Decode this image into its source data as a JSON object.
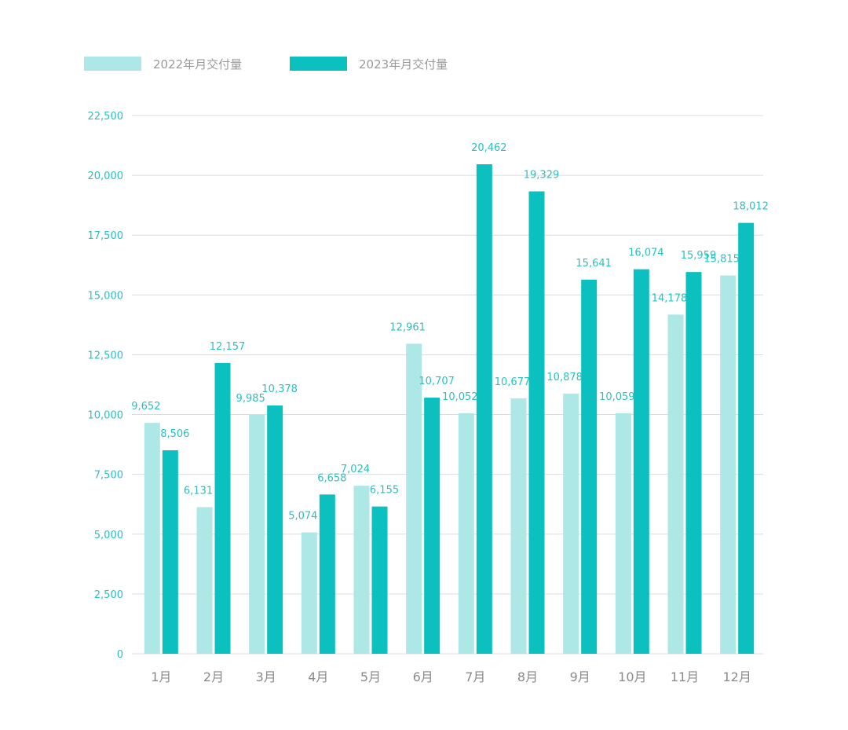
{
  "chart_data": {
    "type": "bar",
    "categories": [
      "1月",
      "2月",
      "3月",
      "4月",
      "5月",
      "6月",
      "7月",
      "8月",
      "9月",
      "10月",
      "11月",
      "12月"
    ],
    "series": [
      {
        "name": "2022年月交付量",
        "color": "#ade8e7",
        "values": [
          9652,
          6131,
          9985,
          5074,
          7024,
          12961,
          10052,
          10677,
          10878,
          10059,
          14178,
          15815
        ],
        "labels": [
          "9,652",
          "6,131",
          "9,985",
          "5,074",
          "7,024",
          "12,961",
          "10,052",
          "10,677",
          "10,878",
          "10,059",
          "14,178",
          "15,815"
        ]
      },
      {
        "name": "2023年月交付量",
        "color": "#0cc0c0",
        "values": [
          8506,
          12157,
          10378,
          6658,
          6155,
          10707,
          20462,
          19329,
          15641,
          16074,
          15959,
          18012
        ],
        "labels": [
          "8,506",
          "12,157",
          "10,378",
          "6,658",
          "6,155",
          "10,707",
          "20,462",
          "19,329",
          "15,641",
          "16,074",
          "15,959",
          "18,012"
        ]
      }
    ],
    "ylim": [
      0,
      22500
    ],
    "yticks": [
      "0",
      "2,500",
      "5,000",
      "7,500",
      "10,000",
      "12,500",
      "15,000",
      "17,500",
      "20,000",
      "22,500"
    ],
    "ytick_values": [
      0,
      2500,
      5000,
      7500,
      10000,
      12500,
      15000,
      17500,
      20000,
      22500
    ],
    "grid": true,
    "legend_position": "top-left",
    "title": "",
    "xlabel": "",
    "ylabel": ""
  }
}
